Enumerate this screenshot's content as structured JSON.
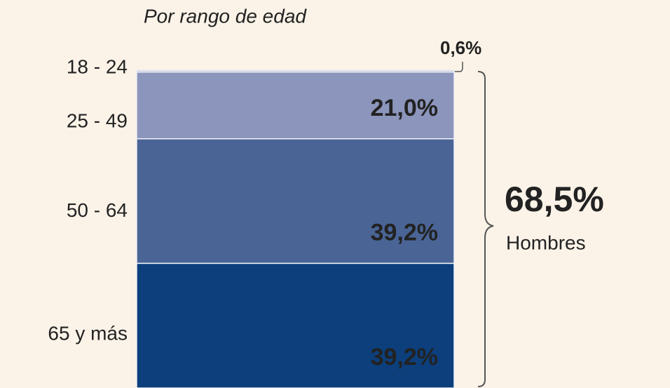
{
  "chart_data": {
    "type": "bar",
    "stacked": true,
    "title": "Por rango de edad",
    "categories": [
      "18 - 24",
      "25 - 49",
      "50 - 64",
      "65 y más"
    ],
    "values": [
      0.6,
      21.0,
      39.2,
      39.2
    ],
    "value_labels": [
      "0,6%",
      "21,0%",
      "39,2%",
      "39,2%"
    ],
    "colors": [
      "#c3c7d8",
      "#8c95bb",
      "#4a6496",
      "#0c3f7c"
    ],
    "ylim": [
      0,
      100
    ],
    "annotations": [
      "68,5%",
      "Hombres"
    ]
  }
}
